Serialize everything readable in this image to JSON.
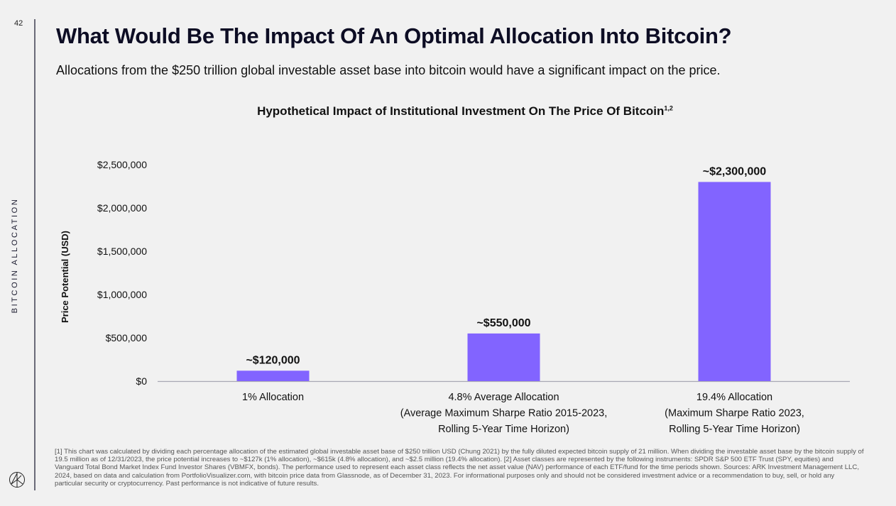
{
  "page": {
    "number": "42",
    "section_label": "BITCOIN ALLOCATION",
    "title": "What Would Be The Impact Of An Optimal Allocation Into Bitcoin?",
    "subtitle": "Allocations from the $250 trillion global investable asset base into bitcoin would have a significant impact on the price.",
    "logo_icon": "ark-logo-icon",
    "footnote": "[1] This chart was calculated by dividing each percentage allocation of the estimated global investable asset base of $250 trillion USD (Chung 2021) by the fully diluted expected bitcoin supply of 21 million. When dividing the investable asset base by the bitcoin supply of 19.5 million as of 12/31/2023, the price potential increases to ~$127k (1% allocation), ~$615k (4.8% allocation), and ~$2.5 million (19.4% allocation). [2] Asset classes are represented by the following instruments: SPDR S&P 500 ETF Trust (SPY, equities) and Vanguard Total Bond Market Index Fund Investor Shares (VBMFX, bonds). The performance used to represent each asset class reflects the net asset value (NAV) performance of each ETF/fund for the time periods shown. Sources: ARK Investment Management LLC, 2024, based on data and calculation from PortfolioVisualizer.com, with bitcoin price data from Glassnode, as of December 31, 2023. For informational purposes only and should not be considered investment advice or a recommendation to buy, sell, or hold any particular security or cryptocurrency. Past performance is not indicative of future results."
  },
  "chart_data": {
    "type": "bar",
    "title": "Hypothetical Impact of Institutional Investment On The Price Of Bitcoin",
    "title_superscript": "1,2",
    "xlabel": "",
    "ylabel": "Price Potential (USD)",
    "ylim": [
      0,
      2500000
    ],
    "yticks": [
      0,
      500000,
      1000000,
      1500000,
      2000000,
      2500000
    ],
    "ytick_labels": [
      "$0",
      "$500,000",
      "$1,000,000",
      "$1,500,000",
      "$2,000,000",
      "$2,500,000"
    ],
    "grid": false,
    "legend": "none",
    "bar_color": "#8264ff",
    "categories": [
      [
        "1% Allocation"
      ],
      [
        "4.8% Average Allocation",
        "(Average Maximum Sharpe Ratio 2015-2023,",
        "Rolling 5-Year Time Horizon)"
      ],
      [
        "19.4% Allocation",
        "(Maximum Sharpe Ratio 2023,",
        "Rolling 5-Year Time Horizon)"
      ]
    ],
    "values": [
      120000,
      550000,
      2300000
    ],
    "data_labels": [
      "~$120,000",
      "~$550,000",
      "~$2,300,000"
    ]
  }
}
